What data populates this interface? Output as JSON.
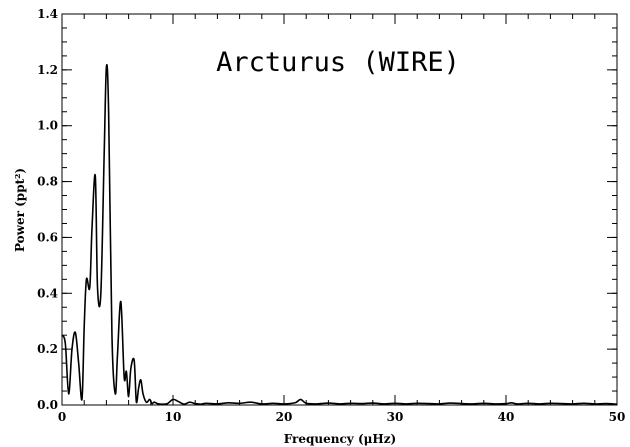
{
  "chart_data": {
    "type": "line",
    "title": "",
    "annotation": "Arcturus (WIRE)",
    "xlabel": "Frequency (μHz)",
    "ylabel": "Power (ppt²)",
    "xlim": [
      0,
      50
    ],
    "ylim": [
      0,
      1.4
    ],
    "xticks": [
      0,
      10,
      20,
      30,
      40,
      50
    ],
    "xtick_labels": [
      "0",
      "10",
      "20",
      "30",
      "40",
      "50"
    ],
    "yticks": [
      0,
      0.2,
      0.4,
      0.6,
      0.8,
      1.0,
      1.2,
      1.4
    ],
    "ytick_labels": [
      "0.0",
      "0.2",
      "0.4",
      "0.6",
      "0.8",
      "1.0",
      "1.2",
      "1.4"
    ],
    "x_minor_step": 2,
    "y_minor_step": 0.05,
    "grid": false,
    "legend": "none",
    "series": [
      {
        "x": [
          0,
          0.3,
          0.6,
          0.9,
          1.2,
          1.5,
          1.8,
          2.0,
          2.2,
          2.5,
          2.7,
          3.0,
          3.2,
          3.5,
          3.8,
          4.0,
          4.2,
          4.5,
          4.8,
          5.0,
          5.3,
          5.6,
          5.8,
          6.0,
          6.2,
          6.5,
          6.7,
          6.9,
          7.1,
          7.3,
          7.6,
          7.9,
          8.1,
          8.3,
          8.6,
          9.0,
          9.5,
          10,
          10.5,
          11,
          11.5,
          12,
          12.5,
          13,
          14,
          15,
          16,
          17,
          18,
          19,
          20,
          21,
          21.5,
          22,
          23,
          24,
          25,
          26,
          27,
          28,
          29,
          30,
          31,
          32,
          33,
          34,
          35,
          36,
          37,
          38,
          39,
          40,
          40.5,
          41,
          42,
          43,
          44,
          45,
          46,
          47,
          48,
          49,
          50
        ],
        "y": [
          0.25,
          0.22,
          0.04,
          0.2,
          0.26,
          0.15,
          0.02,
          0.28,
          0.45,
          0.42,
          0.63,
          0.82,
          0.42,
          0.4,
          0.9,
          1.21,
          1.05,
          0.25,
          0.04,
          0.18,
          0.37,
          0.1,
          0.12,
          0.03,
          0.13,
          0.16,
          0.01,
          0.06,
          0.09,
          0.04,
          0.01,
          0.02,
          0.005,
          0.01,
          0.005,
          0.003,
          0.005,
          0.02,
          0.012,
          0.003,
          0.01,
          0.005,
          0.003,
          0.006,
          0.004,
          0.008,
          0.006,
          0.01,
          0.004,
          0.006,
          0.004,
          0.008,
          0.02,
          0.006,
          0.004,
          0.007,
          0.004,
          0.006,
          0.005,
          0.007,
          0.004,
          0.006,
          0.004,
          0.006,
          0.005,
          0.004,
          0.007,
          0.005,
          0.004,
          0.006,
          0.004,
          0.005,
          0.008,
          0.004,
          0.006,
          0.004,
          0.006,
          0.005,
          0.004,
          0.006,
          0.004,
          0.005,
          0.003
        ]
      }
    ]
  }
}
